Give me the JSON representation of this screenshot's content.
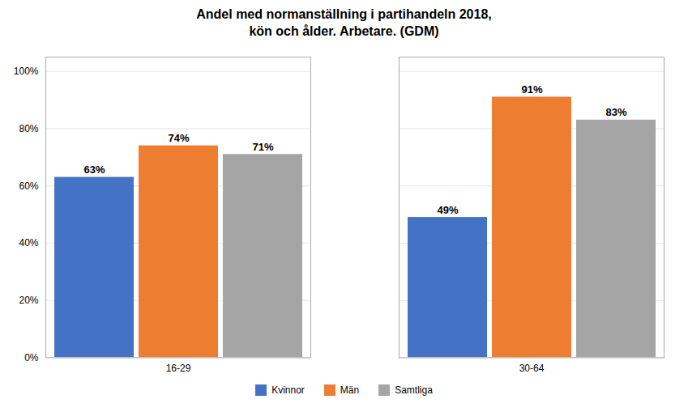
{
  "chart_data": {
    "type": "bar",
    "title": "Andel med normanställning i partihandeln 2018,\nkön och ålder. Arbetare. (GDM)",
    "categories": [
      "16-29",
      "30-64"
    ],
    "series": [
      {
        "name": "Kvinnor",
        "color": "#4472C4",
        "values": [
          0.63,
          0.49
        ],
        "value_labels": [
          "63%",
          "49%"
        ]
      },
      {
        "name": "Män",
        "color": "#ED7D31",
        "values": [
          0.74,
          0.91
        ],
        "value_labels": [
          "74%",
          "91%"
        ]
      },
      {
        "name": "Samtliga",
        "color": "#A5A5A5",
        "values": [
          0.71,
          0.83
        ],
        "value_labels": [
          "71%",
          "83%"
        ]
      }
    ],
    "ylim": [
      0,
      1.05
    ],
    "yticks": [
      {
        "value": 0,
        "label": "0%"
      },
      {
        "value": 0.2,
        "label": "20%"
      },
      {
        "value": 0.4,
        "label": "40%"
      },
      {
        "value": 0.6,
        "label": "60%"
      },
      {
        "value": 0.8,
        "label": "80%"
      },
      {
        "value": 1.0,
        "label": "100%"
      }
    ],
    "grid": true,
    "legend": "bottom",
    "data_labels": true
  }
}
